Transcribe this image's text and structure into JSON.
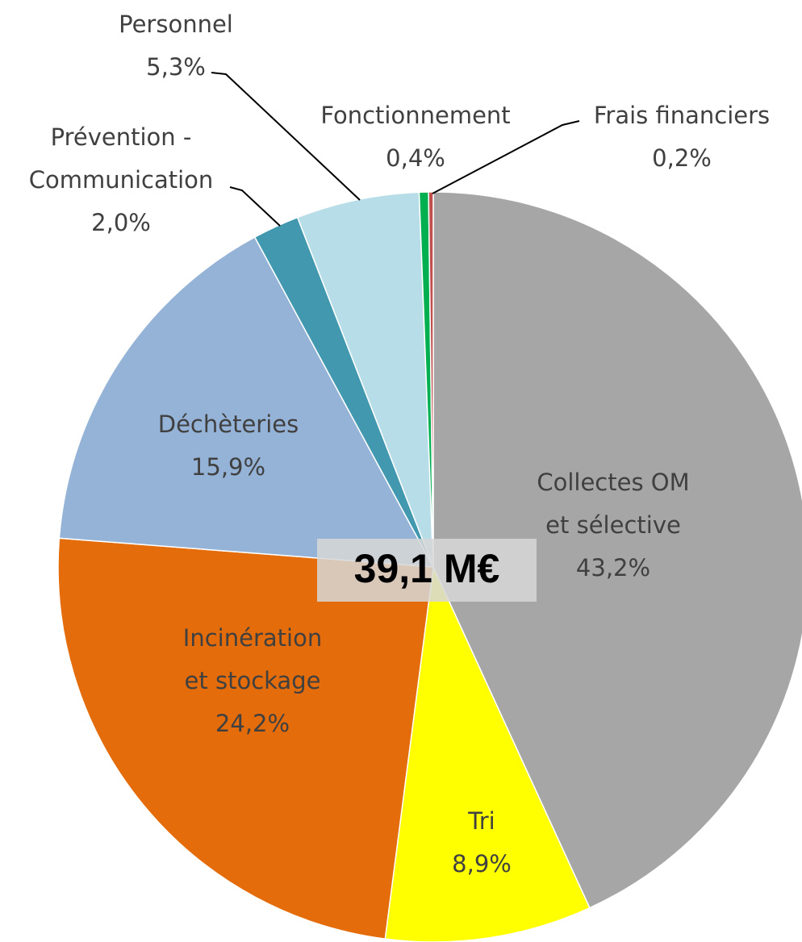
{
  "chart_data": {
    "type": "pie",
    "labels": [
      [
        "Collectes OM",
        "et sélective"
      ],
      [
        "Tri"
      ],
      [
        "Incinération",
        "et stockage"
      ],
      [
        "Déchèteries"
      ],
      [
        "Prévention -",
        "Communication"
      ],
      [
        "Personnel"
      ],
      [
        "Fonctionnement"
      ],
      [
        "Frais financiers"
      ]
    ],
    "values": [
      43.2,
      8.9,
      24.2,
      15.9,
      2.0,
      5.3,
      0.4,
      0.2
    ],
    "value_labels": [
      "43,2%",
      "8,9%",
      "24,2%",
      "15,9%",
      "2,0%",
      "5,3%",
      "0,4%",
      "0,2%"
    ],
    "colors": [
      "#a6a6a6",
      "#ffff00",
      "#e46c0a",
      "#95b3d7",
      "#4198af",
      "#b7dee8",
      "#00b050",
      "#c0504d"
    ],
    "annotation": "39,1 M€"
  }
}
